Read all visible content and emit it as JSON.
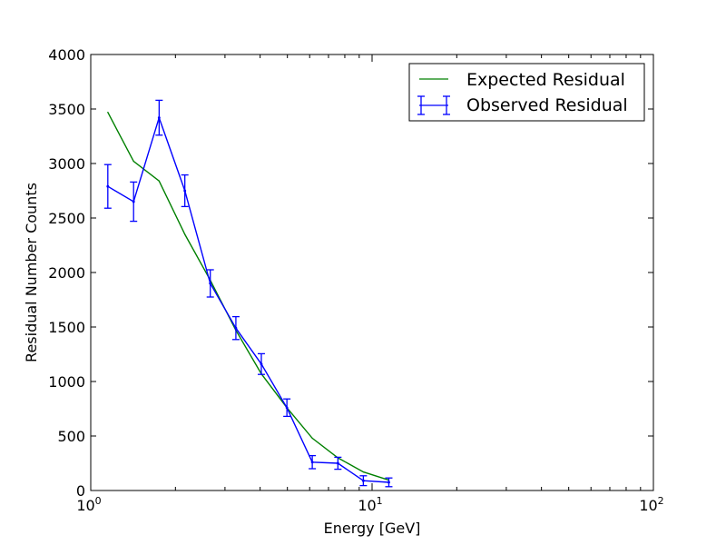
{
  "chart_data": {
    "type": "line",
    "title": "",
    "xlabel": "Energy [GeV]",
    "ylabel": "Residual Number Counts",
    "xscale": "log",
    "xlim": [
      1,
      100
    ],
    "ylim": [
      0,
      4000
    ],
    "x_ticks": [
      {
        "base": "10",
        "exp": "0"
      },
      {
        "base": "10",
        "exp": "1"
      },
      {
        "base": "10",
        "exp": "2"
      }
    ],
    "y_ticks": [
      "0",
      "500",
      "1000",
      "1500",
      "2000",
      "2500",
      "3000",
      "3500",
      "4000"
    ],
    "grid": false,
    "legend": {
      "position": "top-right"
    },
    "series": [
      {
        "name": "Expected Residual",
        "kind": "line",
        "color": "#008000",
        "x": [
          1.15,
          1.42,
          1.75,
          2.16,
          2.66,
          3.28,
          4.04,
          4.98,
          6.13,
          7.56,
          9.31,
          11.47
        ],
        "y": [
          3470,
          3020,
          2840,
          2350,
          1930,
          1470,
          1070,
          760,
          480,
          300,
          170,
          95
        ]
      },
      {
        "name": "Observed Residual",
        "kind": "errorbar",
        "color": "#0000ff",
        "x": [
          1.15,
          1.42,
          1.75,
          2.16,
          2.66,
          3.28,
          4.04,
          4.98,
          6.13,
          7.56,
          9.31,
          11.47
        ],
        "y": [
          2790,
          2650,
          3420,
          2750,
          1900,
          1490,
          1160,
          760,
          260,
          250,
          90,
          75
        ],
        "yerr": [
          200,
          180,
          160,
          145,
          125,
          105,
          95,
          80,
          60,
          55,
          45,
          40
        ]
      }
    ]
  }
}
